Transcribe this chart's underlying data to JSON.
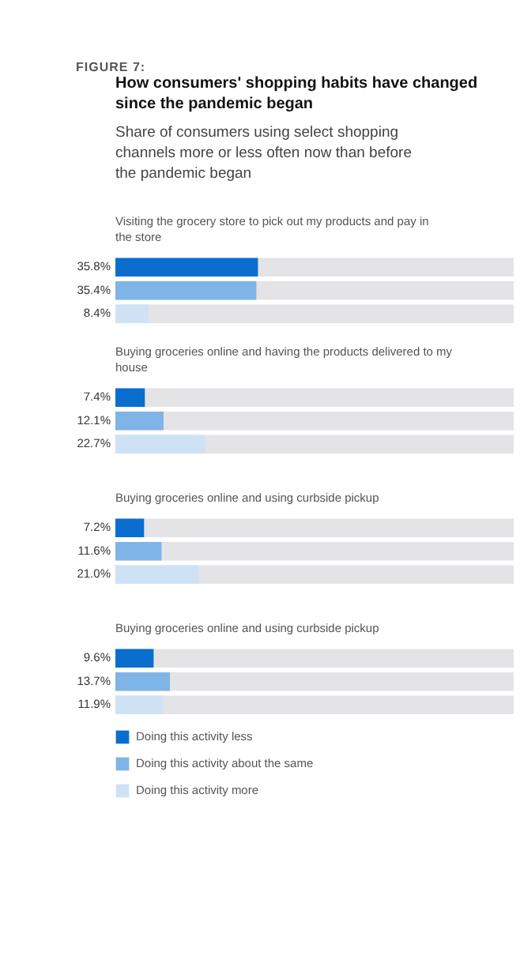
{
  "chart_data": {
    "type": "bar",
    "orientation": "horizontal",
    "title": "How consumers' shopping habits have changed since the pandemic began",
    "subtitle": "Share of consumers using select shopping channels more or less often now than before the pandemic began",
    "annotations": [
      "FIGURE 7:"
    ],
    "categories": [
      "Visiting the grocery store to pick out my products and pay in the store",
      "Buying groceries online and having the products delivered to my house",
      "Buying groceries online and using curbside pickup",
      "Buying groceries online and using curbside pickup"
    ],
    "xlim": [
      0,
      100
    ],
    "tick_labels": "y",
    "legend": "bottom",
    "series": [
      {
        "name": "Doing this activity less",
        "color": "#0a6ecf",
        "values": [
          35.8,
          7.4,
          7.2,
          9.6
        ],
        "value_labels": [
          "35.8%",
          "7.4%",
          "7.2%",
          "9.6%"
        ]
      },
      {
        "name": "Doing this activity about the same",
        "color": "#7fb4e6",
        "values": [
          35.4,
          12.1,
          11.6,
          13.7
        ],
        "value_labels": [
          "35.4%",
          "12.1%",
          "11.6%",
          "13.7%"
        ]
      },
      {
        "name": "Doing this activity more",
        "color": "#cfe2f5",
        "values": [
          8.4,
          22.7,
          21.0,
          11.9
        ],
        "value_labels": [
          "8.4%",
          "22.7%",
          "21.0%",
          "11.9%"
        ]
      }
    ]
  }
}
